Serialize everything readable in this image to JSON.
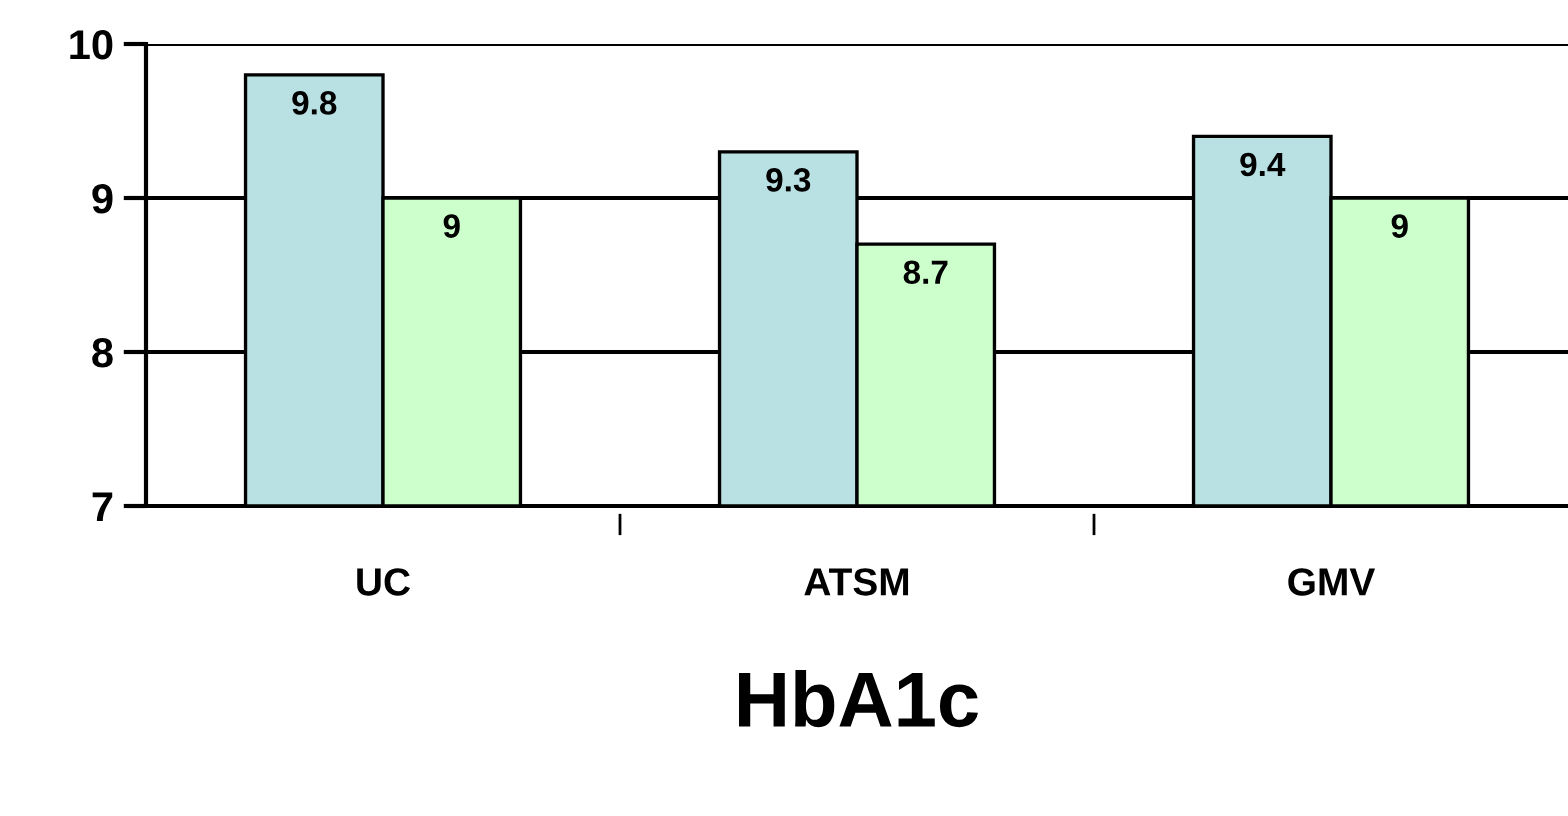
{
  "chart_data": {
    "type": "bar",
    "xlabel": "HbA1c",
    "categories": [
      "UC",
      "ATSM",
      "GMV"
    ],
    "series": [
      {
        "color": "#b9e0e3",
        "values": [
          9.8,
          9.3,
          9.4
        ]
      },
      {
        "color": "#ccffcc",
        "values": [
          9,
          8.7,
          9
        ]
      }
    ],
    "ylim": [
      7,
      10
    ],
    "yticks": [
      7,
      8,
      9,
      10
    ],
    "grid": "y",
    "data_labels": true,
    "legend": false
  }
}
